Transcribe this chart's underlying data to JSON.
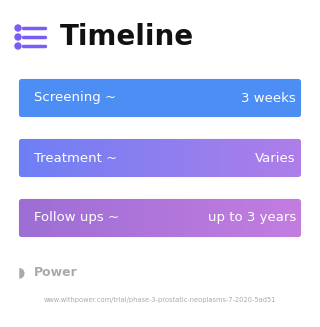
{
  "title": "Timeline",
  "title_fontsize": 20,
  "title_color": "#111111",
  "title_icon_color": "#7B5CF5",
  "title_icon_line_color": "#7B5CF5",
  "background_color": "#ffffff",
  "rows": [
    {
      "label": "Screening ~",
      "value": "3 weeks",
      "gradient": [
        "#4D8EF5",
        "#4D8EF5"
      ]
    },
    {
      "label": "Treatment ~",
      "value": "Varies",
      "gradient": [
        "#6B7FF5",
        "#B07DE8"
      ]
    },
    {
      "label": "Follow ups ~",
      "value": "up to 3 years",
      "gradient": [
        "#9B6DD4",
        "#C47DE0"
      ]
    }
  ],
  "text_color": "#ffffff",
  "label_fontsize": 9.5,
  "value_fontsize": 9.5,
  "footer_text": "Power",
  "footer_url": "www.withpower.com/trial/phase-3-prostatic-neoplasms-7-2020-5ad51",
  "footer_color": "#aaaaaa",
  "footer_fontsize": 4.8
}
